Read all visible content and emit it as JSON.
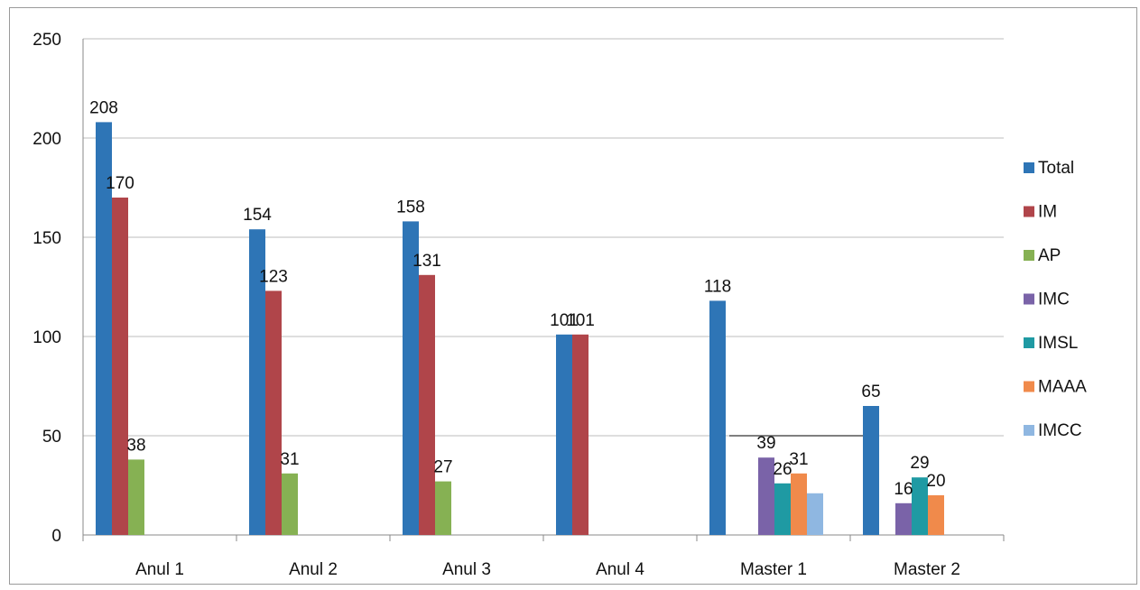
{
  "chart_data": {
    "type": "bar",
    "categories": [
      "Anul 1",
      "Anul 2",
      "Anul 3",
      "Anul 4",
      "Master 1",
      "Master 2"
    ],
    "series": [
      {
        "name": "Total",
        "color": "#2e75b6",
        "values": [
          208,
          154,
          158,
          101,
          118,
          65
        ]
      },
      {
        "name": "IM",
        "color": "#b0454a",
        "values": [
          170,
          123,
          131,
          101,
          null,
          null
        ]
      },
      {
        "name": "AP",
        "color": "#86b153",
        "values": [
          38,
          31,
          27,
          null,
          null,
          null
        ]
      },
      {
        "name": "IMC",
        "color": "#7a63a8",
        "values": [
          null,
          null,
          null,
          null,
          39,
          16
        ]
      },
      {
        "name": "IMSL",
        "color": "#1f9aa3",
        "values": [
          null,
          null,
          null,
          null,
          26,
          29
        ]
      },
      {
        "name": "MAAA",
        "color": "#f08a4b",
        "values": [
          null,
          null,
          null,
          null,
          31,
          20
        ]
      },
      {
        "name": "IMCC",
        "color": "#8fb7e1",
        "values": [
          null,
          null,
          null,
          null,
          21,
          null
        ]
      }
    ],
    "data_labels": [
      [
        208,
        170,
        38
      ],
      [
        154,
        123,
        31
      ],
      [
        158,
        131,
        27
      ],
      [
        101,
        101
      ],
      [
        118,
        39,
        26,
        31
      ],
      [
        65,
        16,
        29,
        20
      ]
    ],
    "yticks": [
      "0",
      "50",
      "100",
      "150",
      "200",
      "250"
    ],
    "ylim": [
      0,
      250
    ],
    "grid": true,
    "legend_position": "right"
  }
}
